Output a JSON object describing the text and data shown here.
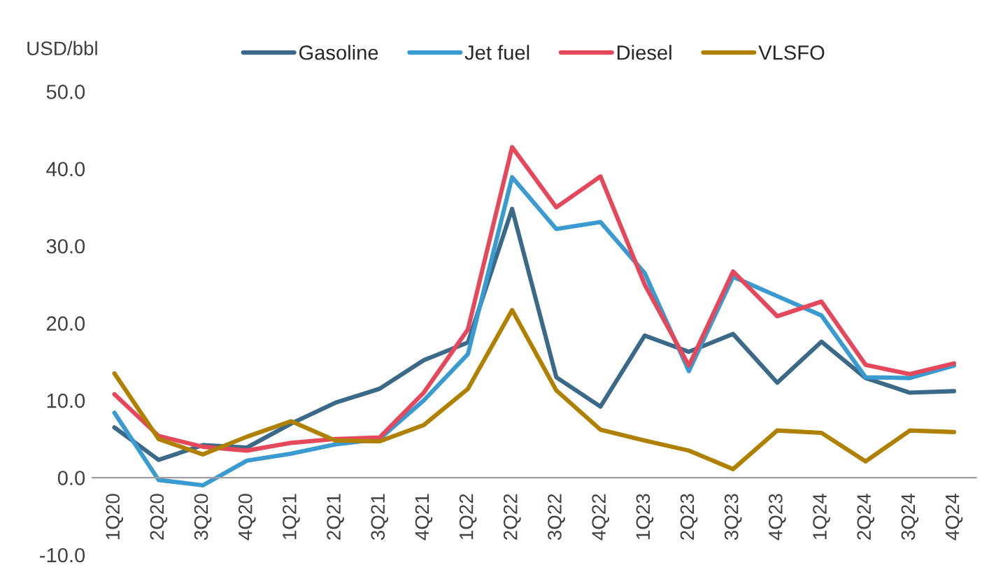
{
  "chart_data": {
    "type": "line",
    "ylabel": "USD/bbl",
    "categories": [
      "1Q20",
      "2Q20",
      "3Q20",
      "4Q20",
      "1Q21",
      "2Q21",
      "3Q21",
      "4Q21",
      "1Q22",
      "2Q22",
      "3Q22",
      "4Q22",
      "1Q23",
      "2Q23",
      "3Q23",
      "4Q23",
      "1Q24",
      "2Q24",
      "3Q24",
      "4Q24"
    ],
    "series": [
      {
        "name": "Gasoline",
        "color": "#3a6a87",
        "values": [
          6.5,
          2.3,
          4.2,
          3.9,
          7.0,
          9.7,
          11.5,
          15.2,
          17.5,
          34.8,
          13.0,
          9.2,
          18.4,
          16.3,
          18.6,
          12.3,
          17.6,
          12.9,
          11.0,
          11.2
        ]
      },
      {
        "name": "Jet fuel",
        "color": "#3a9bd0",
        "values": [
          8.4,
          -0.3,
          -1.0,
          2.2,
          3.1,
          4.3,
          5.0,
          10.0,
          16.0,
          38.9,
          32.2,
          33.1,
          26.5,
          13.8,
          26.0,
          23.5,
          21.0,
          13.0,
          12.9,
          14.5
        ]
      },
      {
        "name": "Diesel",
        "color": "#e4485a",
        "values": [
          10.8,
          5.4,
          4.0,
          3.5,
          4.5,
          5.0,
          5.2,
          11.0,
          19.2,
          42.8,
          35.0,
          39.0,
          25.0,
          14.5,
          26.7,
          20.9,
          22.8,
          14.6,
          13.4,
          14.8
        ]
      },
      {
        "name": "VLSFO",
        "color": "#b08000",
        "values": [
          13.5,
          5.0,
          3.0,
          5.3,
          7.3,
          4.8,
          4.7,
          6.8,
          11.5,
          21.7,
          11.3,
          6.2,
          4.8,
          3.5,
          1.1,
          6.1,
          5.8,
          2.1,
          6.1,
          5.9
        ]
      }
    ],
    "ylim": [
      -10,
      50
    ],
    "yticks": [
      {
        "value": -10,
        "label": "-10.0"
      },
      {
        "value": 0,
        "label": "0.0"
      },
      {
        "value": 10,
        "label": "10.0"
      },
      {
        "value": 20,
        "label": "20.0"
      },
      {
        "value": 30,
        "label": "30.0"
      },
      {
        "value": 40,
        "label": "40.0"
      },
      {
        "value": 50,
        "label": "50.0"
      }
    ],
    "grid": false,
    "legend": "top",
    "marker": "none",
    "line_style": "solid"
  }
}
